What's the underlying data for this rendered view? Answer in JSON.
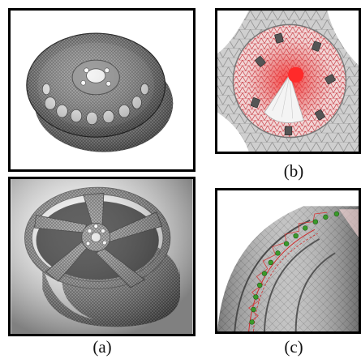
{
  "figure": {
    "captions": {
      "a": "(a)",
      "b": "(b)",
      "c": "(c)"
    }
  }
}
